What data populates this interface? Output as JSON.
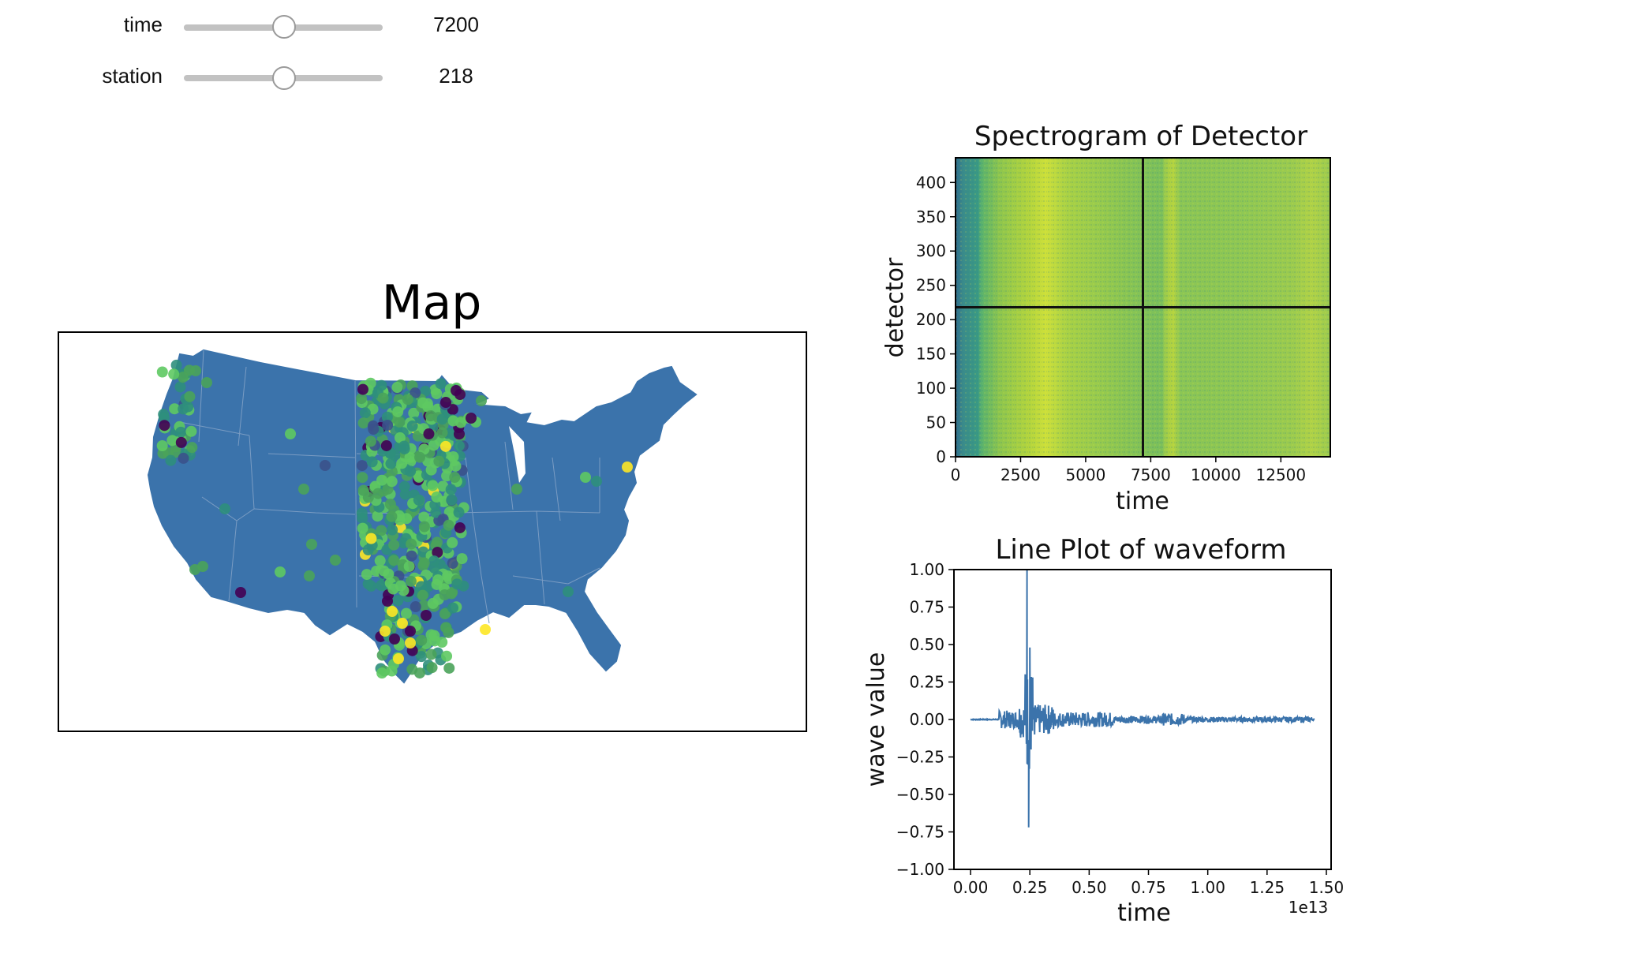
{
  "controls": {
    "time": {
      "label": "time",
      "value": "7200",
      "fraction": 0.5
    },
    "station": {
      "label": "station",
      "value": "218",
      "fraction": 0.5
    }
  },
  "map": {
    "title": "Map",
    "colors": {
      "land": "#3b73ab",
      "border": "#7a9cc3"
    }
  },
  "spectrogram": {
    "title": "Spectrogram of Detector",
    "xlabel": "time",
    "ylabel": "detector",
    "xticks": [
      "0",
      "2500",
      "5000",
      "7500",
      "10000",
      "12500"
    ],
    "yticks": [
      "0",
      "50",
      "100",
      "150",
      "200",
      "250",
      "300",
      "350",
      "400"
    ],
    "crosshair": {
      "time": 7200,
      "detector": 218
    },
    "xlim": [
      0,
      14400
    ],
    "ylim": [
      0,
      436
    ]
  },
  "lineplot": {
    "title": "Line Plot of waveform",
    "xlabel": "time",
    "ylabel": "wave value",
    "offset_text": "1e13",
    "xticks": [
      "0.00",
      "0.25",
      "0.50",
      "0.75",
      "1.00",
      "1.25",
      "1.50"
    ],
    "yticks": [
      "−1.00",
      "−0.75",
      "−0.50",
      "−0.25",
      "0.00",
      "0.25",
      "0.50",
      "0.75",
      "1.00"
    ],
    "color": "#3b73ab"
  },
  "chart_data": [
    {
      "type": "heatmap",
      "title": "Spectrogram of Detector",
      "xlabel": "time",
      "ylabel": "detector",
      "xlim": [
        0,
        14400
      ],
      "ylim": [
        0,
        436
      ],
      "bright_bands_time": [
        2400,
        7900,
        13800
      ],
      "dark_band_time": [
        0,
        900
      ]
    },
    {
      "type": "line",
      "title": "Line Plot of waveform",
      "xlabel": "time",
      "ylabel": "wave value",
      "xlim": [
        -0.07,
        1.52
      ],
      "ylim": [
        -1.0,
        1.0
      ],
      "series": [
        {
          "x": [
            0.0,
            0.1,
            0.15,
            0.2,
            0.235,
            0.24,
            0.245,
            0.25,
            0.26,
            0.3,
            0.4,
            0.5,
            0.6,
            0.7,
            0.8,
            0.85,
            0.9,
            1.0,
            1.2,
            1.4,
            1.45
          ],
          "values": [
            0.0,
            0.0,
            0.12,
            0.15,
            0.3,
            1.0,
            -0.72,
            0.48,
            0.2,
            0.08,
            0.05,
            0.04,
            0.03,
            0.02,
            0.03,
            0.05,
            0.02,
            0.01,
            0.01,
            0.01,
            0.0
          ]
        }
      ]
    }
  ]
}
